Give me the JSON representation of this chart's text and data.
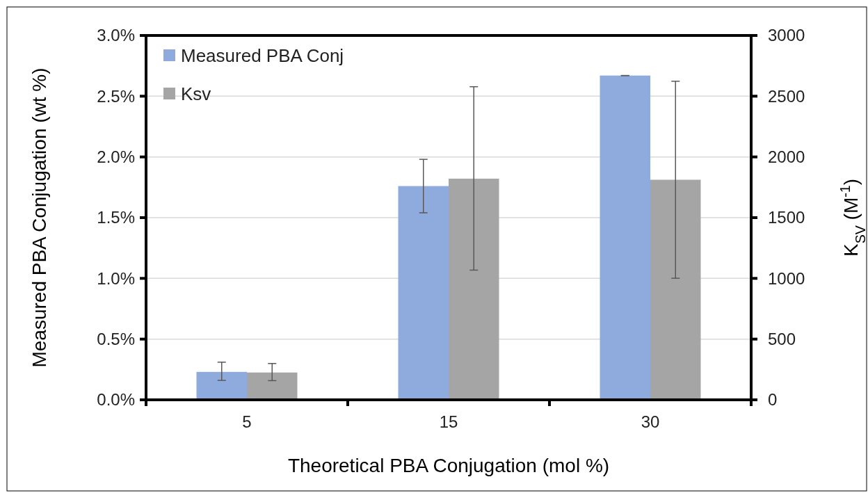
{
  "chart_data": {
    "type": "bar",
    "xlabel": "Theoretical PBA Conjugation (mol %)",
    "ylabel": "Measured PBA Conjugation (wt %)",
    "y2label": "K$_{SV}$ (M$^{-1}$)",
    "categories": [
      "5",
      "15",
      "30"
    ],
    "series": [
      {
        "name": "Measured PBA Conj",
        "color": "#8faadc",
        "values": [
          0.23,
          1.76,
          2.67
        ],
        "errors": [
          [
            0.16,
            0.31
          ],
          [
            1.54,
            1.98
          ],
          0
        ]
      },
      {
        "name": "Ksv",
        "color": "#a5a5a5",
        "axis": "y2",
        "values": [
          225,
          1821,
          1812
        ],
        "errors": [
          [
            158,
            299
          ],
          [
            1068,
            2578
          ],
          [
            1001,
            2623
          ]
        ]
      }
    ],
    "ylim": [
      0,
      3
    ],
    "yticks": [
      {
        "value": 0,
        "label": "0.0%"
      },
      {
        "value": 0.5,
        "label": "0.5%"
      },
      {
        "value": 1,
        "label": "1.0%"
      },
      {
        "value": 1.5,
        "label": "1.5%"
      },
      {
        "value": 2,
        "label": "2.0%"
      },
      {
        "value": 2.5,
        "label": "2.5%"
      },
      {
        "value": 3,
        "label": "3.0%"
      }
    ],
    "y2lim": [
      0,
      3000
    ],
    "y2ticks": [
      0,
      500,
      1000,
      1500,
      2000,
      2500,
      3000
    ],
    "grid": "y",
    "legend": "top left"
  }
}
